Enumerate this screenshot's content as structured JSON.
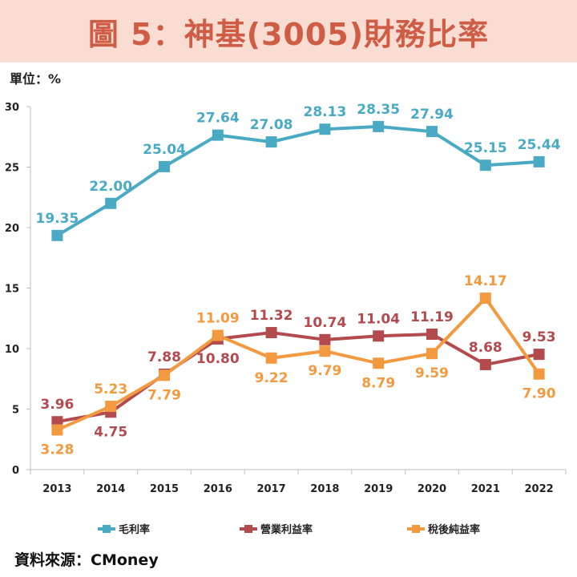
{
  "header": {
    "title": "圖 5：神基(3005)財務比率"
  },
  "unit_label": "單位：%",
  "source_label": "資料來源：CMoney",
  "chart_data": {
    "type": "line",
    "title": "圖 5：神基(3005)財務比率",
    "xlabel": "",
    "ylabel": "單位：%",
    "ylim": [
      0,
      30
    ],
    "yticks": [
      "0",
      "5",
      "10",
      "15",
      "20",
      "25",
      "30"
    ],
    "grid": false,
    "legend_position": "bottom",
    "categories": [
      "2013",
      "2014",
      "2015",
      "2016",
      "2017",
      "2018",
      "2019",
      "2020",
      "2021",
      "2022"
    ],
    "series": [
      {
        "name": "毛利率",
        "color": "#4aaac4",
        "values": [
          19.35,
          22.0,
          25.04,
          27.64,
          27.08,
          28.13,
          28.35,
          27.94,
          25.15,
          25.44
        ],
        "labels": [
          "19.35",
          "22.00",
          "25.04",
          "27.64",
          "27.08",
          "28.13",
          "28.35",
          "27.94",
          "25.15",
          "25.44"
        ],
        "label_pos": [
          "above",
          "above",
          "above",
          "above",
          "above",
          "above",
          "above",
          "above",
          "above",
          "above"
        ]
      },
      {
        "name": "營業利益率",
        "color": "#b24a4e",
        "values": [
          3.96,
          4.75,
          7.88,
          10.8,
          11.32,
          10.74,
          11.04,
          11.19,
          8.68,
          9.53
        ],
        "labels": [
          "3.96",
          "4.75",
          "7.88",
          "10.80",
          "11.32",
          "10.74",
          "11.04",
          "11.19",
          "8.68",
          "9.53"
        ],
        "label_pos": [
          "above",
          "below",
          "above",
          "below",
          "above",
          "above",
          "above",
          "above",
          "above",
          "above"
        ]
      },
      {
        "name": "稅後純益率",
        "color": "#f39a40",
        "values": [
          3.28,
          5.23,
          7.79,
          11.09,
          9.22,
          9.79,
          8.79,
          9.59,
          14.17,
          7.9
        ],
        "labels": [
          "3.28",
          "5.23",
          "7.79",
          "11.09",
          "9.22",
          "9.79",
          "8.79",
          "9.59",
          "14.17",
          "7.90"
        ],
        "label_pos": [
          "below",
          "above",
          "below",
          "above",
          "below",
          "below",
          "below",
          "below",
          "above",
          "below"
        ]
      }
    ]
  }
}
